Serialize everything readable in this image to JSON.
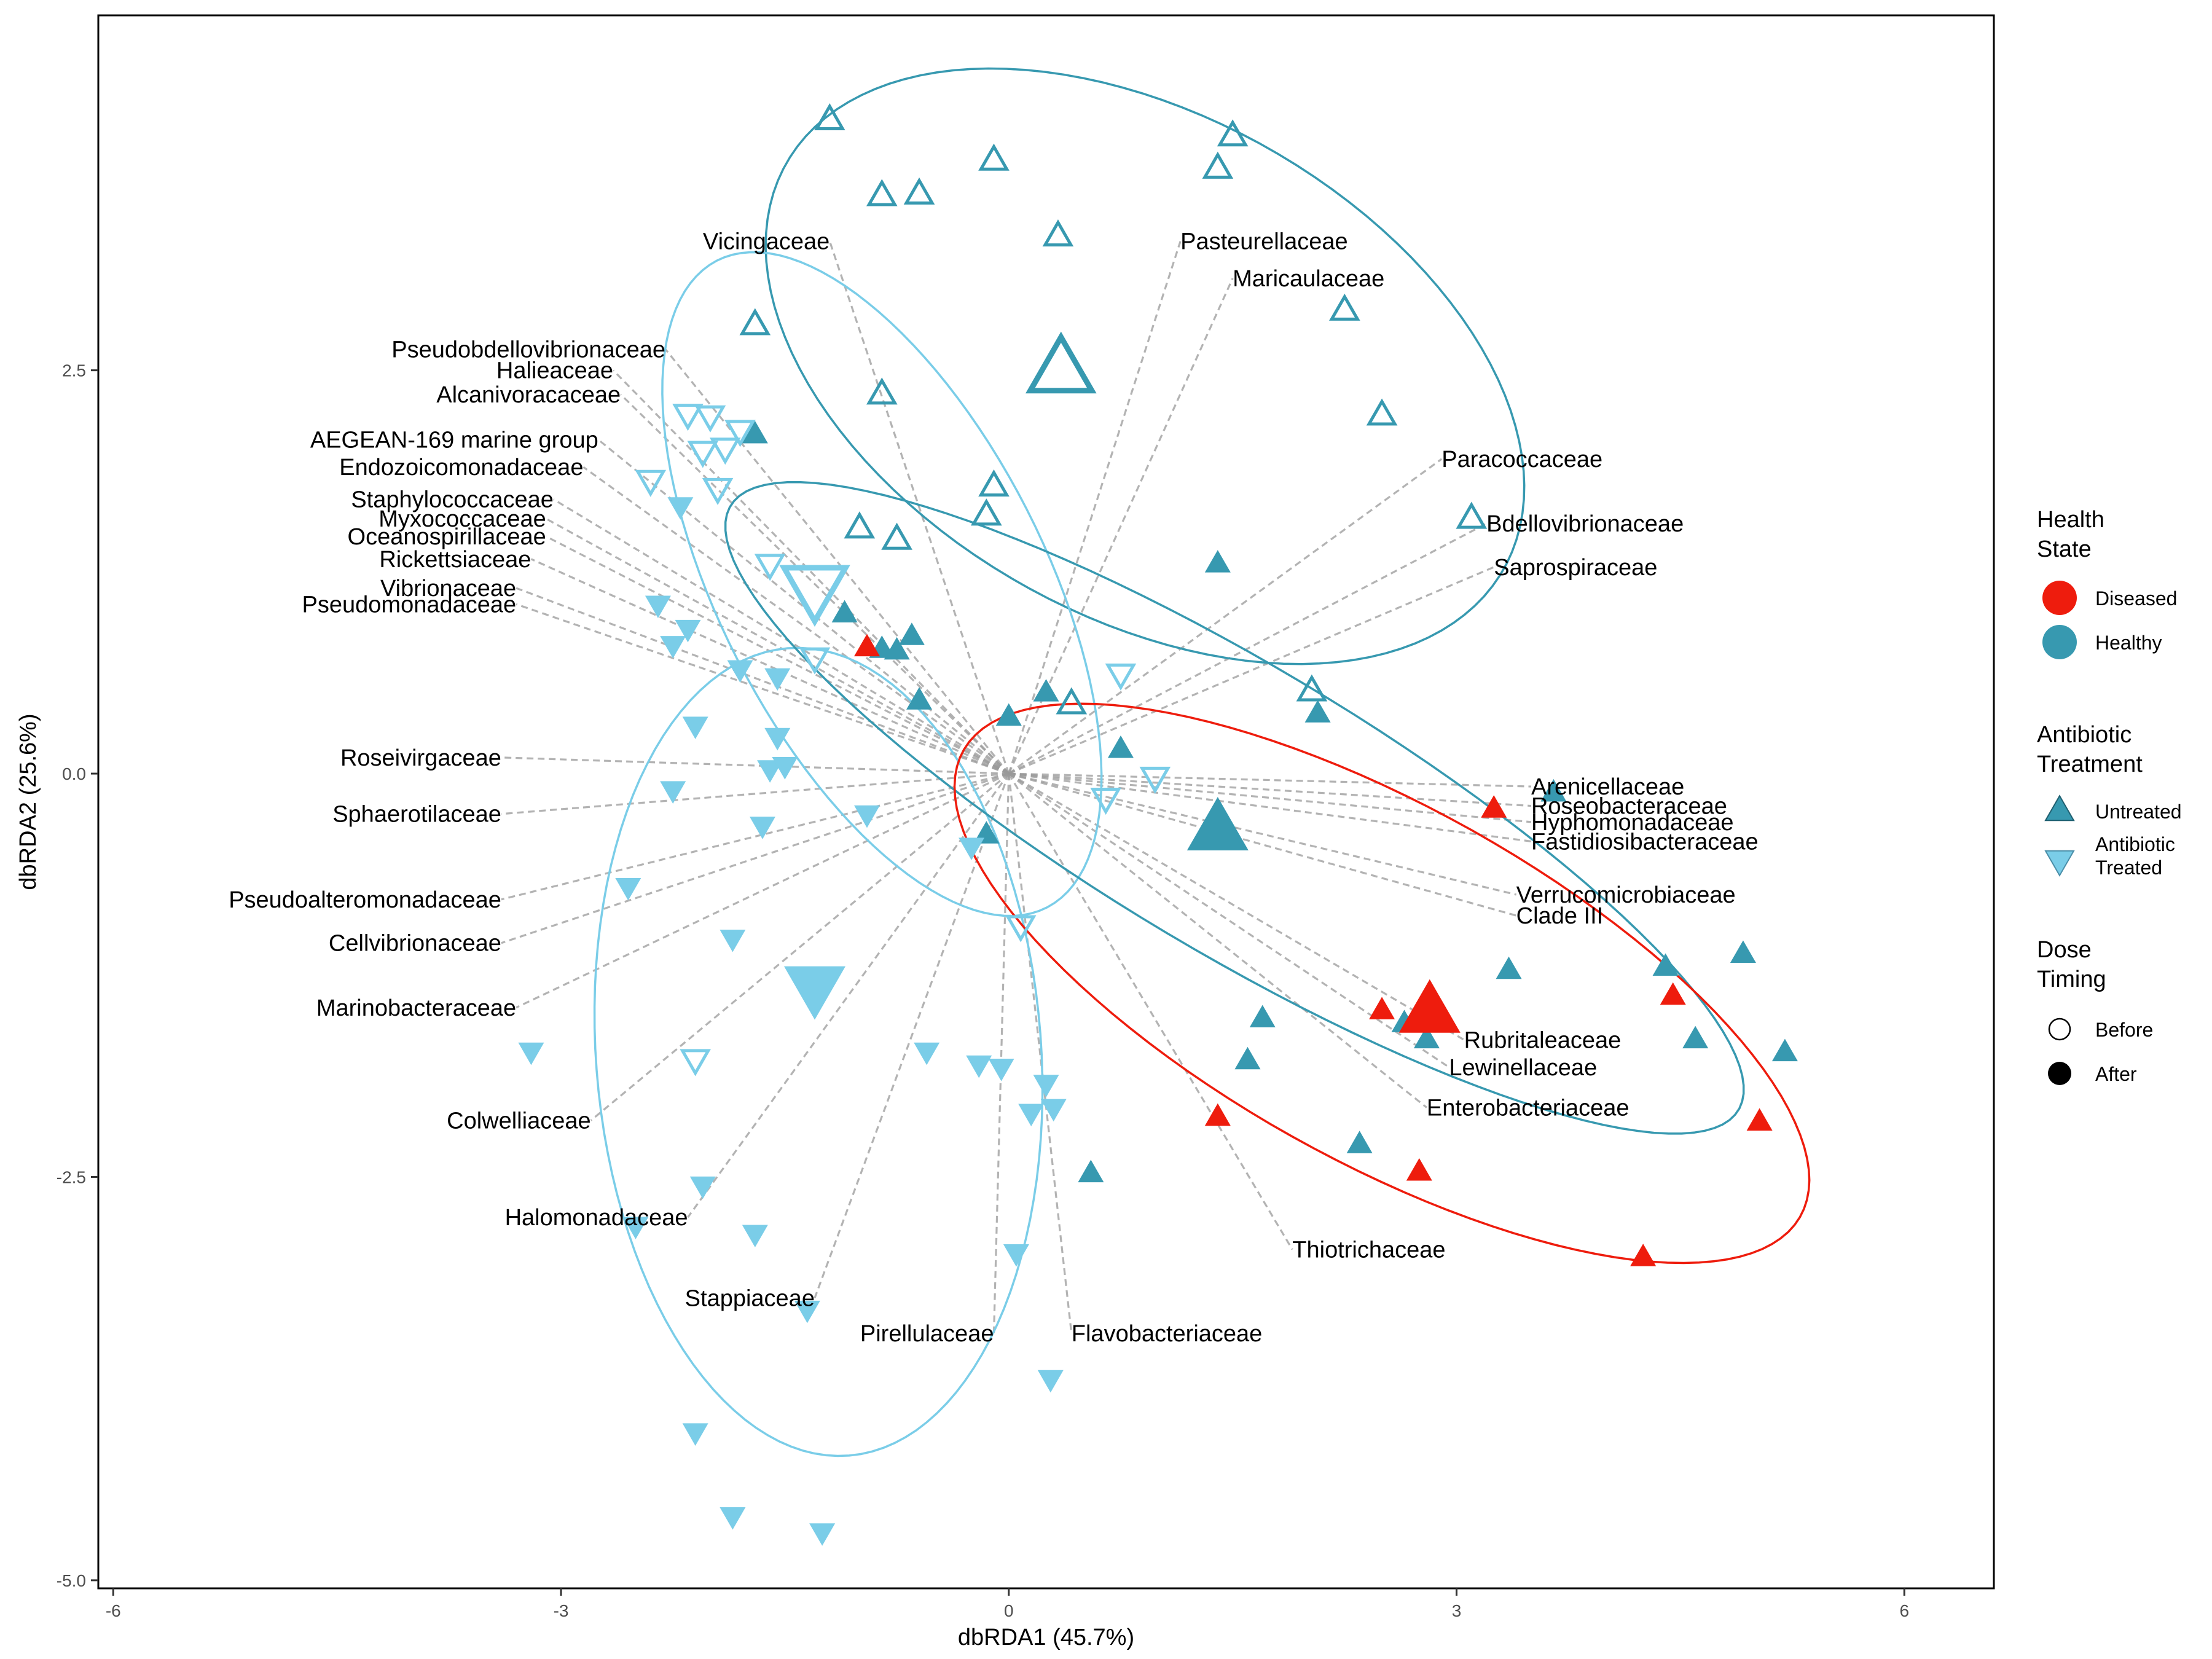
{
  "chart_data": {
    "type": "scatter",
    "title": "",
    "xlabel": "dbRDA1 (45.7%)",
    "ylabel": "dbRDA2 (25.6%)",
    "xlim": [
      -6.1,
      6.6
    ],
    "ylim": [
      -5.05,
      4.7
    ],
    "xticks": [
      -6,
      -3,
      0,
      3,
      6
    ],
    "yticks": [
      -5.0,
      -2.5,
      0.0,
      2.5
    ],
    "xtick_labels": [
      "-6",
      "-3",
      "0",
      "3",
      "6"
    ],
    "ytick_labels": [
      "-5.0",
      "-2.5",
      "0.0",
      "2.5"
    ],
    "grid": false,
    "colors": {
      "diseased": "#EE1C0D",
      "healthy": "#3799B0",
      "treated": "#7ACDE8",
      "segment": "#9a9a9a"
    },
    "legend": {
      "health": {
        "title_lines": [
          "Health",
          "State"
        ],
        "items": [
          {
            "label": "Diseased",
            "color": "#EE1C0D"
          },
          {
            "label": "Healthy",
            "color": "#3799B0"
          }
        ]
      },
      "treatment": {
        "title_lines": [
          "Antibiotic",
          "Treatment"
        ],
        "items": [
          {
            "label_lines": [
              "Untreated"
            ],
            "shape": "triangle-up",
            "color": "#3799B0"
          },
          {
            "label_lines": [
              "Antibiotic",
              "Treated"
            ],
            "shape": "triangle-down",
            "color": "#7ACDE8"
          }
        ]
      },
      "timing": {
        "title_lines": [
          "Dose",
          "Timing"
        ],
        "items": [
          {
            "label": "Before",
            "fill": "open"
          },
          {
            "label": "After",
            "fill": "filled"
          }
        ]
      }
    },
    "groups": [
      {
        "health": "Healthy",
        "treatment": "Untreated",
        "timing": "Before",
        "color": "#3799B0",
        "shape": "up",
        "filled": false,
        "points": [
          [
            -1.2,
            4.05
          ],
          [
            -0.1,
            3.8
          ],
          [
            1.5,
            3.95
          ],
          [
            1.4,
            3.75
          ],
          [
            -0.85,
            3.58
          ],
          [
            -0.6,
            3.59
          ],
          [
            0.33,
            3.33
          ],
          [
            2.25,
            2.87
          ],
          [
            -1.7,
            2.78
          ],
          [
            -0.85,
            2.35
          ],
          [
            2.5,
            2.22
          ],
          [
            -0.1,
            1.78
          ],
          [
            -0.15,
            1.6
          ],
          [
            3.1,
            1.58
          ],
          [
            -1.0,
            1.52
          ],
          [
            -0.75,
            1.45
          ],
          [
            0.42,
            0.43
          ],
          [
            2.03,
            0.51
          ]
        ],
        "centroid": [
          0.35,
          2.5
        ]
      },
      {
        "health": "Healthy",
        "treatment": "Untreated",
        "timing": "After",
        "color": "#3799B0",
        "shape": "up",
        "filled": true,
        "points": [
          [
            -1.7,
            2.1
          ],
          [
            1.4,
            1.3
          ],
          [
            -1.1,
            0.99
          ],
          [
            -0.65,
            0.85
          ],
          [
            -0.85,
            0.77
          ],
          [
            -0.75,
            0.76
          ],
          [
            -0.6,
            0.45
          ],
          [
            0.25,
            0.5
          ],
          [
            0.0,
            0.35
          ],
          [
            0.75,
            0.15
          ],
          [
            2.07,
            0.37
          ],
          [
            3.65,
            -0.12
          ],
          [
            -0.15,
            -0.38
          ],
          [
            3.35,
            -1.22
          ],
          [
            4.92,
            -1.12
          ],
          [
            4.4,
            -1.2
          ],
          [
            1.7,
            -1.52
          ],
          [
            2.65,
            -1.55
          ],
          [
            2.8,
            -1.65
          ],
          [
            4.6,
            -1.65
          ],
          [
            5.2,
            -1.73
          ],
          [
            1.6,
            -1.78
          ],
          [
            2.35,
            -2.3
          ],
          [
            0.55,
            -2.48
          ]
        ],
        "centroid": [
          1.4,
          -0.35
        ]
      },
      {
        "health": "Healthy",
        "treatment": "Treated",
        "timing": "Before",
        "color": "#7ACDE8",
        "shape": "down",
        "filled": false,
        "points": [
          [
            -2.15,
            2.23
          ],
          [
            -2.0,
            2.22
          ],
          [
            -1.8,
            2.13
          ],
          [
            -2.05,
            2.0
          ],
          [
            -1.9,
            2.02
          ],
          [
            -2.4,
            1.82
          ],
          [
            -1.95,
            1.77
          ],
          [
            -1.6,
            1.3
          ],
          [
            -1.3,
            0.72
          ],
          [
            0.75,
            0.62
          ],
          [
            0.98,
            -0.02
          ],
          [
            0.65,
            -0.15
          ],
          [
            0.08,
            -0.94
          ],
          [
            -2.1,
            -1.77
          ]
        ],
        "centroid": [
          -1.3,
          1.15
        ]
      },
      {
        "health": "Healthy",
        "treatment": "Treated",
        "timing": "After",
        "color": "#7ACDE8",
        "shape": "down",
        "filled": true,
        "points": [
          [
            -2.2,
            1.66
          ],
          [
            -2.35,
            1.05
          ],
          [
            -2.15,
            0.9
          ],
          [
            -2.25,
            0.8
          ],
          [
            -1.8,
            0.65
          ],
          [
            -1.55,
            0.6
          ],
          [
            -2.1,
            0.3
          ],
          [
            -1.55,
            0.23
          ],
          [
            -1.6,
            0.03
          ],
          [
            -1.5,
            0.05
          ],
          [
            -2.25,
            -0.1
          ],
          [
            -1.65,
            -0.32
          ],
          [
            -0.95,
            -0.25
          ],
          [
            -0.25,
            -0.45
          ],
          [
            -2.55,
            -0.7
          ],
          [
            -1.85,
            -1.02
          ],
          [
            -3.2,
            -1.72
          ],
          [
            -0.55,
            -1.72
          ],
          [
            -0.2,
            -1.8
          ],
          [
            -0.05,
            -1.82
          ],
          [
            0.25,
            -1.92
          ],
          [
            0.15,
            -2.1
          ],
          [
            0.3,
            -2.07
          ],
          [
            -2.05,
            -2.55
          ],
          [
            -1.7,
            -2.85
          ],
          [
            -2.5,
            -2.8
          ],
          [
            0.05,
            -2.97
          ],
          [
            -1.35,
            -3.32
          ],
          [
            0.28,
            -3.75
          ],
          [
            -2.1,
            -4.08
          ],
          [
            -1.85,
            -4.6
          ],
          [
            -1.25,
            -4.7
          ]
        ],
        "centroid": [
          -1.3,
          -1.32
        ]
      },
      {
        "health": "Diseased",
        "treatment": "Untreated",
        "timing": "After",
        "color": "#EE1C0D",
        "shape": "up",
        "filled": true,
        "points": [
          [
            -0.95,
            0.78
          ],
          [
            3.25,
            -0.22
          ],
          [
            2.5,
            -1.47
          ],
          [
            4.45,
            -1.38
          ],
          [
            1.4,
            -2.13
          ],
          [
            2.75,
            -2.47
          ],
          [
            5.03,
            -2.16
          ],
          [
            4.25,
            -3.0
          ]
        ],
        "centroid": [
          2.82,
          -1.48
        ]
      }
    ],
    "ellipses": [
      {
        "color": "#3799B0",
        "points": [
          [
            0.35,
            4.3
          ],
          [
            3.25,
            2.3
          ],
          [
            1.7,
            0.65
          ],
          [
            -1.65,
            2.85
          ]
        ]
      },
      {
        "color": "#7ACDE8",
        "points": [
          [
            -2.4,
            2.1
          ],
          [
            -1.0,
            3.0
          ],
          [
            0.5,
            0.3
          ],
          [
            -0.5,
            -0.7
          ]
        ]
      },
      {
        "color": "#7ACDE8",
        "points": [
          [
            -2.8,
            -2.0
          ],
          [
            -1.3,
            1.2
          ],
          [
            0.2,
            -2.3
          ],
          [
            -1.2,
            -3.8
          ]
        ]
      },
      {
        "color": "#3799B0",
        "points": [
          [
            -1.6,
            0.9
          ],
          [
            0.0,
            1.45
          ],
          [
            4.4,
            -1.2
          ],
          [
            3.25,
            -2.0
          ]
        ]
      },
      {
        "color": "#EE1C0D",
        "points": [
          [
            0.0,
            -0.3
          ],
          [
            2.8,
            0.1
          ],
          [
            5.6,
            -3.2
          ],
          [
            1.6,
            -1.8
          ]
        ]
      }
    ],
    "species": [
      {
        "name": "Vicingaceae",
        "x": -1.2,
        "y": 3.3,
        "anchor": "end"
      },
      {
        "name": "Pasteurellaceae",
        "x": 1.15,
        "y": 3.3,
        "anchor": "start"
      },
      {
        "name": "Maricaulaceae",
        "x": 1.5,
        "y": 3.07,
        "anchor": "start"
      },
      {
        "name": "Pseudobdellovibrionaceae",
        "x": -2.3,
        "y": 2.63,
        "anchor": "end"
      },
      {
        "name": "Halieaceae",
        "x": -2.65,
        "y": 2.5,
        "anchor": "end"
      },
      {
        "name": "Alcanivoracaceae",
        "x": -2.6,
        "y": 2.35,
        "anchor": "end"
      },
      {
        "name": "AEGEAN-169 marine group",
        "x": -2.75,
        "y": 2.07,
        "anchor": "end"
      },
      {
        "name": "Endozoicomonadaceae",
        "x": -2.85,
        "y": 1.9,
        "anchor": "end"
      },
      {
        "name": "Paracoccaceae",
        "x": 2.9,
        "y": 1.95,
        "anchor": "start"
      },
      {
        "name": "Staphylococcaceae",
        "x": -3.05,
        "y": 1.7,
        "anchor": "end"
      },
      {
        "name": "Myxococcaceae",
        "x": -3.1,
        "y": 1.58,
        "anchor": "end"
      },
      {
        "name": "Bdellovibrionaceae",
        "x": 3.2,
        "y": 1.55,
        "anchor": "start"
      },
      {
        "name": "Oceanospirillaceae",
        "x": -3.1,
        "y": 1.47,
        "anchor": "end"
      },
      {
        "name": "Rickettsiaceae",
        "x": -3.2,
        "y": 1.33,
        "anchor": "end"
      },
      {
        "name": "Saprospiraceae",
        "x": 3.25,
        "y": 1.28,
        "anchor": "start"
      },
      {
        "name": "Vibrionaceae",
        "x": -3.3,
        "y": 1.15,
        "anchor": "end"
      },
      {
        "name": "Pseudomonadaceae",
        "x": -3.3,
        "y": 1.05,
        "anchor": "end"
      },
      {
        "name": "Roseivirgaceae",
        "x": -3.4,
        "y": 0.1,
        "anchor": "end"
      },
      {
        "name": "Sphaerotilaceae",
        "x": -3.4,
        "y": -0.25,
        "anchor": "end"
      },
      {
        "name": "Arenicellaceae",
        "x": 3.5,
        "y": -0.08,
        "anchor": "start"
      },
      {
        "name": "Roseobacteraceae",
        "x": 3.5,
        "y": -0.2,
        "anchor": "start"
      },
      {
        "name": "Hyphomonadaceae",
        "x": 3.5,
        "y": -0.3,
        "anchor": "start"
      },
      {
        "name": "Fastidiosibacteraceae",
        "x": 3.5,
        "y": -0.42,
        "anchor": "start"
      },
      {
        "name": "Verrucomicrobiaceae",
        "x": 3.4,
        "y": -0.75,
        "anchor": "start"
      },
      {
        "name": "Clade III",
        "x": 3.4,
        "y": -0.88,
        "anchor": "start"
      },
      {
        "name": "Pseudoalteromonadaceae",
        "x": -3.4,
        "y": -0.78,
        "anchor": "end"
      },
      {
        "name": "Cellvibrionaceae",
        "x": -3.4,
        "y": -1.05,
        "anchor": "end"
      },
      {
        "name": "Marinobacteraceae",
        "x": -3.3,
        "y": -1.45,
        "anchor": "end"
      },
      {
        "name": "Rubritaleaceae",
        "x": 3.05,
        "y": -1.65,
        "anchor": "start"
      },
      {
        "name": "Lewinellaceae",
        "x": 2.95,
        "y": -1.82,
        "anchor": "start"
      },
      {
        "name": "Enterobacteriaceae",
        "x": 2.8,
        "y": -2.07,
        "anchor": "start"
      },
      {
        "name": "Colwelliaceae",
        "x": -2.8,
        "y": -2.15,
        "anchor": "end"
      },
      {
        "name": "Halomonadaceae",
        "x": -2.15,
        "y": -2.75,
        "anchor": "end"
      },
      {
        "name": "Thiotrichaceae",
        "x": 1.9,
        "y": -2.95,
        "anchor": "start"
      },
      {
        "name": "Stappiaceae",
        "x": -1.3,
        "y": -3.25,
        "anchor": "end"
      },
      {
        "name": "Pirellulaceae",
        "x": -0.1,
        "y": -3.47,
        "anchor": "end"
      },
      {
        "name": "Flavobacteriaceae",
        "x": 0.42,
        "y": -3.47,
        "anchor": "start"
      }
    ]
  }
}
